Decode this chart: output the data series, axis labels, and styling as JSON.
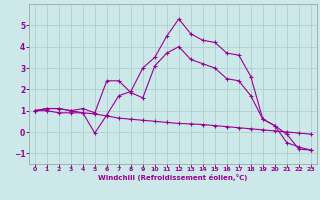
{
  "xlabel": "Windchill (Refroidissement éolien,°C)",
  "x_hours": [
    0,
    1,
    2,
    3,
    4,
    5,
    6,
    7,
    8,
    9,
    10,
    11,
    12,
    13,
    14,
    15,
    16,
    17,
    18,
    19,
    20,
    21,
    22,
    23
  ],
  "line1": [
    1.0,
    1.1,
    1.1,
    1.0,
    0.9,
    -0.05,
    0.8,
    1.7,
    1.9,
    3.0,
    3.5,
    4.5,
    5.3,
    4.6,
    4.3,
    4.2,
    3.7,
    3.6,
    2.6,
    0.6,
    0.3,
    -0.1,
    -0.8,
    -0.85
  ],
  "line2": [
    1.0,
    1.1,
    1.1,
    1.0,
    1.1,
    0.9,
    2.4,
    2.4,
    1.85,
    1.6,
    3.1,
    3.7,
    4.0,
    3.4,
    3.2,
    3.0,
    2.5,
    2.4,
    1.7,
    0.6,
    0.3,
    -0.5,
    -0.7,
    -0.85
  ],
  "line3": [
    1.0,
    1.0,
    0.9,
    0.9,
    0.9,
    0.85,
    0.75,
    0.65,
    0.6,
    0.55,
    0.5,
    0.45,
    0.4,
    0.38,
    0.35,
    0.3,
    0.25,
    0.2,
    0.15,
    0.1,
    0.05,
    0.0,
    -0.05,
    -0.1
  ],
  "line_color": "#990099",
  "bg_color": "#cce8e8",
  "grid_color": "#aacccc",
  "ylim": [
    -1.5,
    6.0
  ],
  "xlim": [
    -0.5,
    23.5
  ],
  "yticks": [
    -1,
    0,
    1,
    2,
    3,
    4,
    5
  ],
  "xticks": [
    0,
    1,
    2,
    3,
    4,
    5,
    6,
    7,
    8,
    9,
    10,
    11,
    12,
    13,
    14,
    15,
    16,
    17,
    18,
    19,
    20,
    21,
    22,
    23
  ]
}
